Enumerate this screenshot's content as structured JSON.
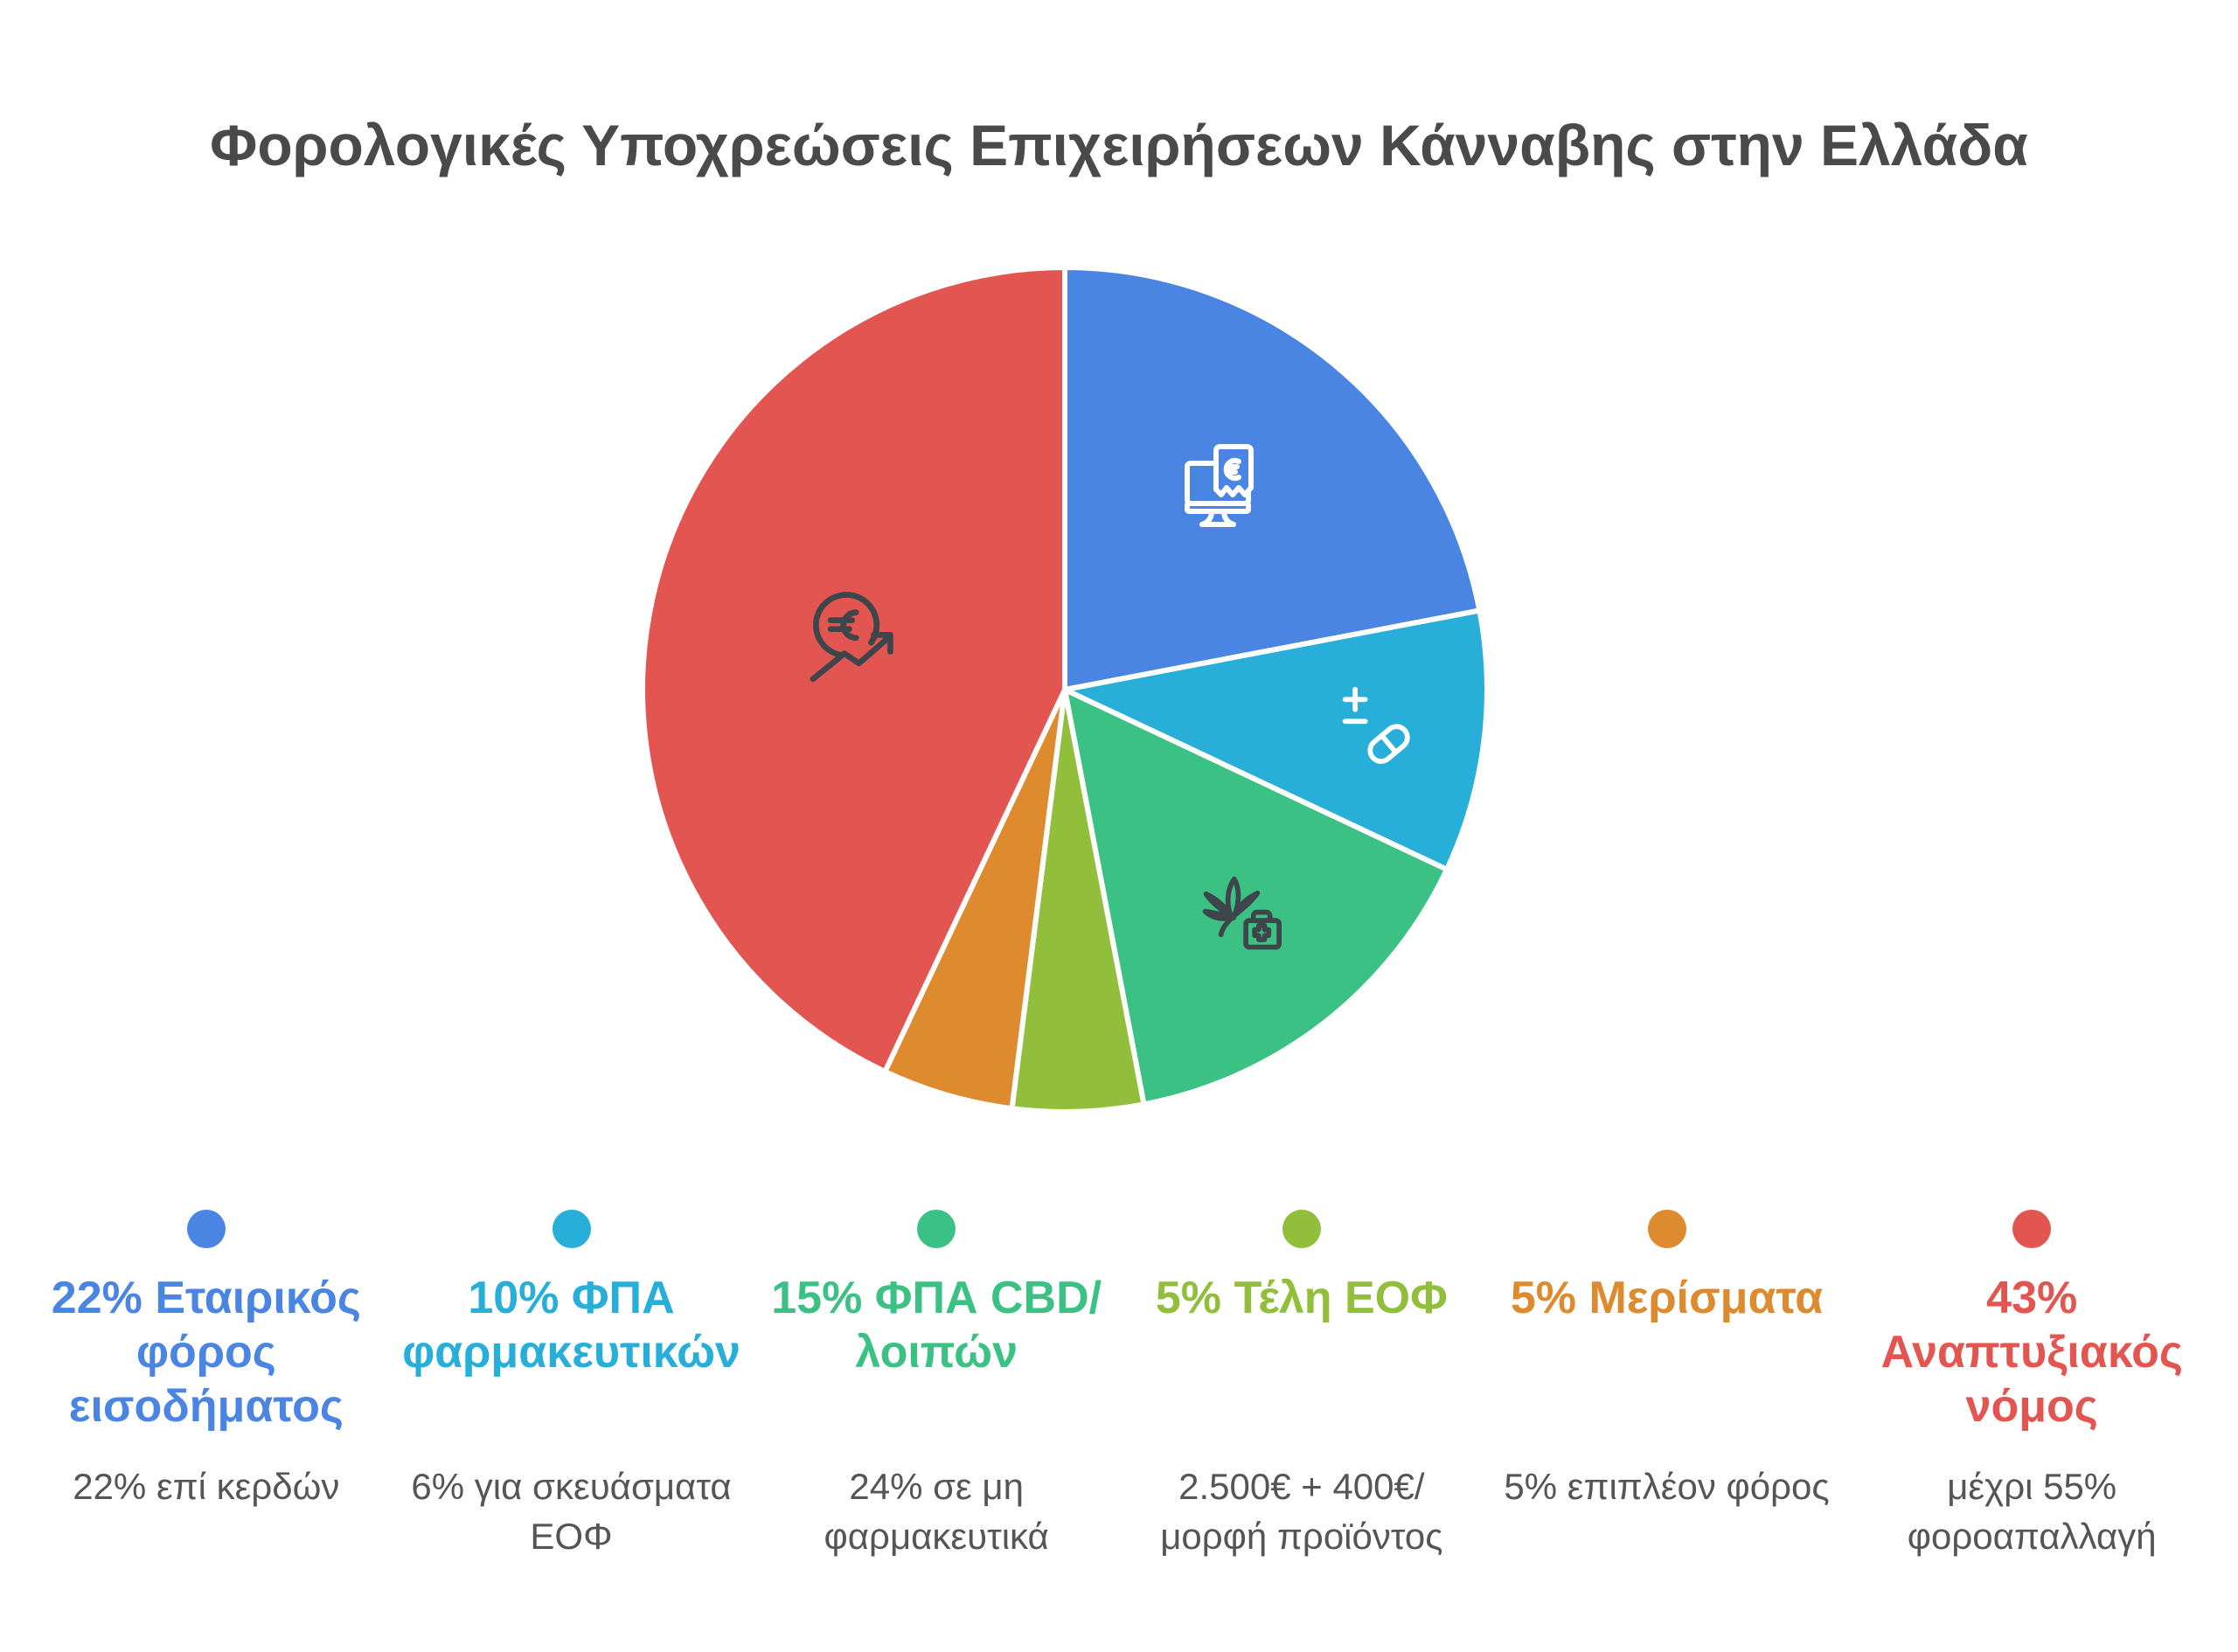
{
  "chart_data": {
    "type": "pie",
    "title": "Φορολογικές Υποχρεώσεις Επιχειρήσεων Κάνναβης στην Ελλάδα",
    "unit": "%",
    "total": 100,
    "start_angle_deg": -90,
    "direction": "clockwise",
    "legend_position": "bottom",
    "grid": false,
    "slices": [
      {
        "label": "22% Εταιρικός φόρος εισοδήματος",
        "label_lines": "22% Εταιρικός\nφόρος\nεισοδήματος",
        "value": 22,
        "color": "#4a85e4",
        "icon": "monitor-invoice-icon",
        "description": "22% επί κερδών",
        "description_lines": "22% επί κερδών"
      },
      {
        "label": "10% ΦΠΑ φαρμακευτικών",
        "label_lines": "10% ΦΠΑ\nφαρμακευτικών",
        "value": 10,
        "color": "#27aed9",
        "icon": "pill-dosage-icon",
        "description": "6% για σκευάσματα ΕΟΦ",
        "description_lines": "6% για σκευάσματα\nΕΟΦ"
      },
      {
        "label": "15% ΦΠΑ CBD/λοιπών",
        "label_lines": "15% ΦΠΑ CBD/\nλοιπών",
        "value": 15,
        "color": "#3bc183",
        "icon": "cannabis-medical-icon",
        "description": "24% σε μη φαρμακευτικά",
        "description_lines": "24% σε μη\nφαρμακευτικά"
      },
      {
        "label": "5% Τέλη ΕΟΦ",
        "label_lines": "5% Τέλη ΕΟΦ",
        "value": 5,
        "color": "#92bf3b",
        "description": "2.500€ + 400€/μορφή προϊόντος",
        "description_lines": "2.500€ + 400€/\nμορφή προϊόντος"
      },
      {
        "label": "5% Μερίσματα",
        "label_lines": "5% Μερίσματα",
        "value": 5,
        "color": "#de8a2f",
        "description": "5% επιπλέον φόρος",
        "description_lines": "5% επιπλέον φόρος"
      },
      {
        "label": "43% Αναπτυξιακός νόμος",
        "label_lines": "43%\nΑναπτυξιακός\nνόμος",
        "value": 43,
        "color": "#e25551",
        "icon": "euro-growth-icon",
        "description": "μέχρι 55% φοροαπαλλαγή",
        "description_lines": "μέχρι 55%\nφοροαπαλλαγή"
      }
    ]
  },
  "colors": {
    "background": "#ffffff",
    "title_text": "#4a4a4a",
    "description_text": "#555555",
    "slice_border": "#ffffff",
    "icon_light": "#ffffff",
    "icon_dark": "#3f464b"
  }
}
